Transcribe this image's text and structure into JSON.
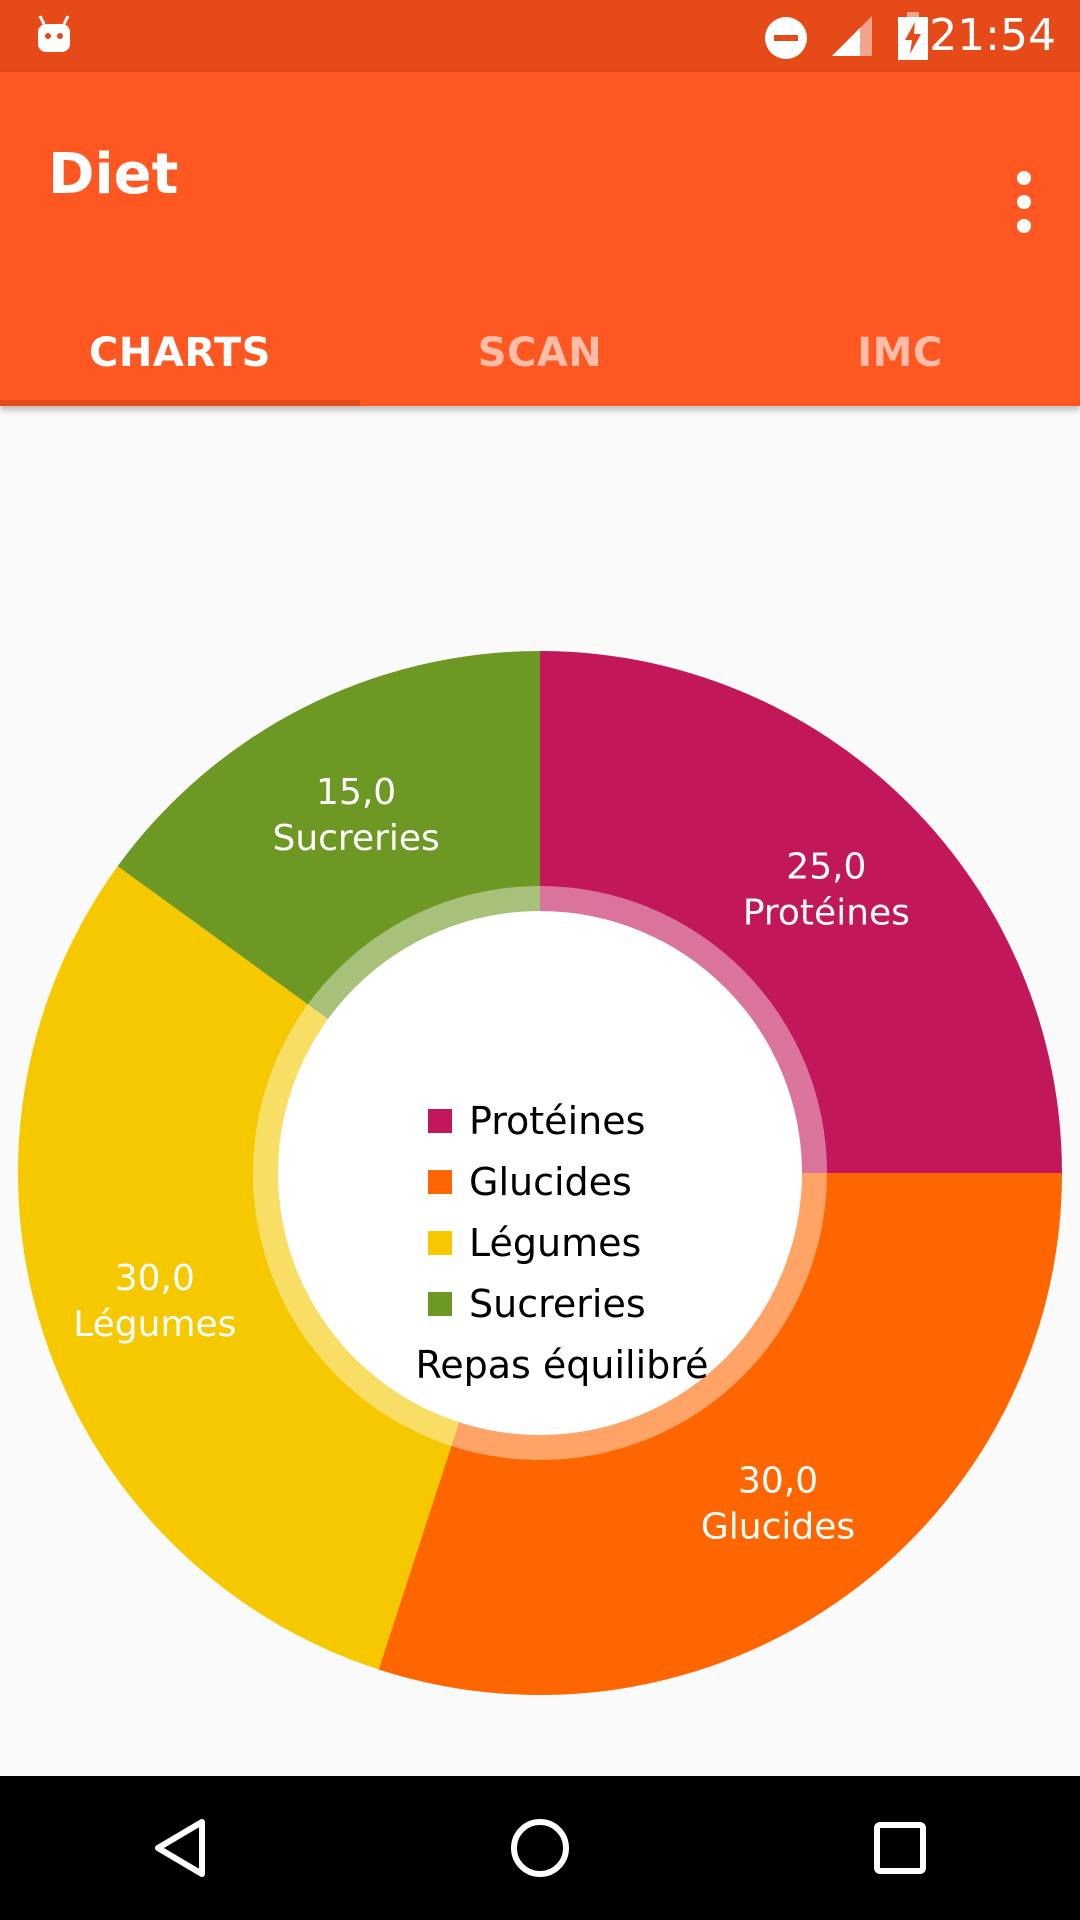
{
  "status_bar": {
    "time": "21:54",
    "icons": [
      "android-debug-icon",
      "do-not-disturb-icon",
      "signal-icon",
      "battery-charging-icon"
    ]
  },
  "app_bar": {
    "title": "Diet",
    "menu_icon": "more-vert-icon"
  },
  "tabs": [
    {
      "label": "CHARTS",
      "active": true
    },
    {
      "label": "SCAN",
      "active": false
    },
    {
      "label": "IMC",
      "active": false
    }
  ],
  "chart_data": {
    "type": "pie",
    "center_text": "Repas équilibré",
    "slices": [
      {
        "name": "Protéines",
        "value": 25.0,
        "value_label": "25,0",
        "color": "#c2185b"
      },
      {
        "name": "Glucides",
        "value": 30.0,
        "value_label": "30,0",
        "color": "#ff6600"
      },
      {
        "name": "Légumes",
        "value": 30.0,
        "value_label": "30,0",
        "color": "#f5c800"
      },
      {
        "name": "Sucreries",
        "value": 15.0,
        "value_label": "15,0",
        "color": "#6d9823"
      }
    ],
    "legend": [
      "Protéines",
      "Glucides",
      "Légumes",
      "Sucreries"
    ],
    "legend_placement": "center"
  },
  "nav_bar": {
    "icons": [
      "back-icon",
      "home-icon",
      "recents-icon"
    ]
  }
}
